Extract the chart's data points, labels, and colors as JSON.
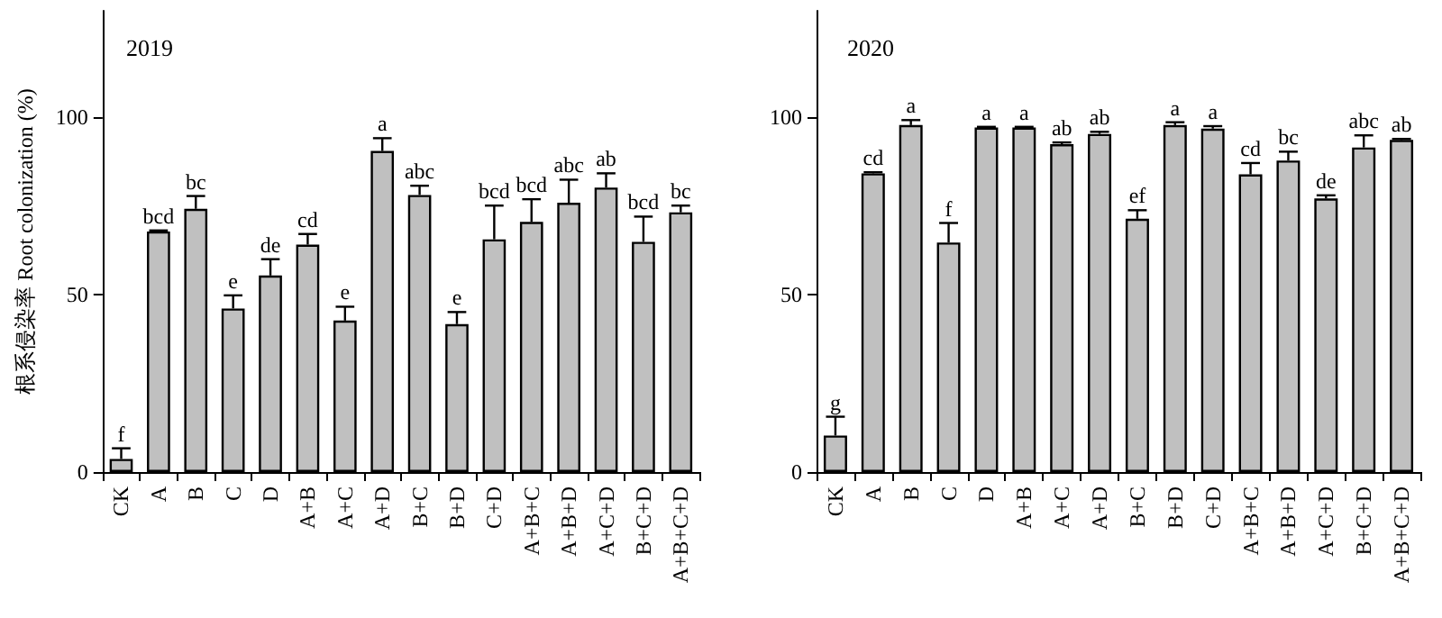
{
  "chart_data": [
    {
      "type": "bar",
      "ylabel": "根系侵染率 Root colonization (%)",
      "annotations": [
        "2019"
      ],
      "categories": [
        "CK",
        "A",
        "B",
        "C",
        "D",
        "A+B",
        "A+C",
        "A+D",
        "B+C",
        "B+D",
        "C+D",
        "A+B+C",
        "A+B+D",
        "A+C+D",
        "B+C+D",
        "A+B+C+D"
      ],
      "series": [
        {
          "color": "#c0c0c0",
          "values": [
            3.7,
            67.8,
            74.2,
            46.1,
            55.4,
            64.1,
            42.7,
            90.5,
            78.1,
            41.7,
            65.6,
            70.5,
            75.9,
            80.2,
            64.9,
            73.2
          ],
          "errors": [
            [
              3.7,
              6.7
            ],
            [
              67.8,
              68.1
            ],
            [
              74.2,
              77.8
            ],
            [
              46.1,
              49.8
            ],
            [
              55.4,
              60
            ],
            [
              64.1,
              67.1
            ],
            [
              42.7,
              46.6
            ],
            [
              90.5,
              94.1
            ],
            [
              78.1,
              80.7
            ],
            [
              41.7,
              45.1
            ],
            [
              65.6,
              75.1
            ],
            [
              70.5,
              76.9
            ],
            [
              75.9,
              82.4
            ],
            [
              80.2,
              84.2
            ],
            [
              64.9,
              72
            ],
            [
              73.2,
              75.1
            ]
          ],
          "value_labels": [
            "f",
            "bcd",
            "bc",
            "e",
            "de",
            "cd",
            "e",
            "a",
            "abc",
            "e",
            "bcd",
            "bcd",
            "abc",
            "ab",
            "bcd",
            "bc"
          ]
        }
      ],
      "ylim": [
        0,
        130
      ],
      "yticks": [
        0,
        50,
        100
      ],
      "grid": false
    },
    {
      "type": "bar",
      "annotations": [
        "2020"
      ],
      "categories": [
        "CK",
        "A",
        "B",
        "C",
        "D",
        "A+B",
        "A+C",
        "A+D",
        "B+C",
        "B+D",
        "C+D",
        "A+B+C",
        "A+B+D",
        "A+C+D",
        "B+C+D",
        "A+B+C+D"
      ],
      "series": [
        {
          "color": "#c0c0c0",
          "values": [
            10.3,
            84.2,
            97.8,
            64.7,
            97.1,
            97.1,
            92.4,
            95.3,
            71.4,
            97.8,
            96.8,
            83.9,
            87.8,
            77.1,
            91.5,
            93.6
          ],
          "errors": [
            [
              10.3,
              15.6
            ],
            [
              84.2,
              84.5
            ],
            [
              97.8,
              99.2
            ],
            [
              64.7,
              70.2
            ],
            [
              97.1,
              97.3
            ],
            [
              97.1,
              97.3
            ],
            [
              92.4,
              92.9
            ],
            [
              95.3,
              95.9
            ],
            [
              71.4,
              73.8
            ],
            [
              97.8,
              98.6
            ],
            [
              96.8,
              97.5
            ],
            [
              83.9,
              87.1
            ],
            [
              87.8,
              90.3
            ],
            [
              77.1,
              78
            ],
            [
              91.5,
              94.9
            ],
            [
              93.6,
              93.9
            ]
          ],
          "value_labels": [
            "g",
            "cd",
            "a",
            "f",
            "a",
            "a",
            "ab",
            "ab",
            "ef",
            "a",
            "a",
            "cd",
            "bc",
            "de",
            "abc",
            "ab"
          ]
        }
      ],
      "ylim": [
        0,
        130
      ],
      "yticks": [
        0,
        50,
        100
      ],
      "grid": false
    }
  ]
}
